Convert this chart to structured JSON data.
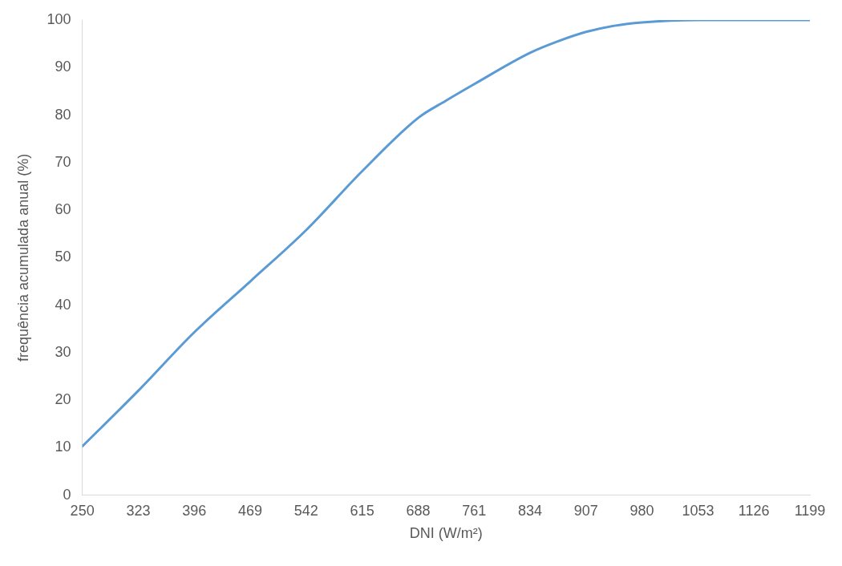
{
  "chart_data": {
    "type": "line",
    "xlabel": "DNI (W/m²)",
    "ylabel": "frequência acumulada anual (%)",
    "x": [
      250,
      323,
      396,
      469,
      542,
      615,
      688,
      724,
      761,
      834,
      870,
      907,
      944,
      980,
      1053,
      1126,
      1199
    ],
    "series": [
      {
        "color": "#5b9bd5",
        "values": [
          10.3,
          22,
          34.3,
          45,
          55.8,
          68.2,
          79.4,
          83,
          86.5,
          93.1,
          95.5,
          97.5,
          98.8,
          99.5,
          100,
          100,
          100
        ]
      }
    ],
    "xlim": [
      250,
      1199
    ],
    "xticks": [
      250,
      323,
      396,
      469,
      542,
      615,
      688,
      761,
      834,
      907,
      980,
      1053,
      1126,
      1199
    ],
    "ylim": [
      0,
      100
    ],
    "yticks": [
      0,
      10,
      20,
      30,
      40,
      50,
      60,
      70,
      80,
      90,
      100
    ],
    "grid": false,
    "legend": false,
    "marker": "none",
    "line_style": "solid"
  }
}
